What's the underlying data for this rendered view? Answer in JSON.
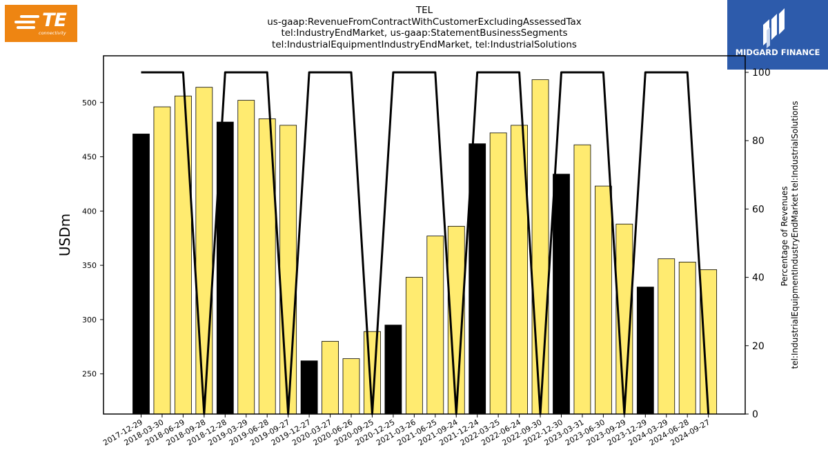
{
  "header": {
    "title_lines": [
      "TEL",
      "us-gaap:RevenueFromContractWithCustomerExcludingAssessedTax",
      "tel:IndustryEndMarket, us-gaap:StatementBusinessSegments",
      "tel:IndustrialEquipmentIndustryEndMarket, tel:IndustrialSolutions"
    ]
  },
  "logos": {
    "left": {
      "text": "TE",
      "subtext": "connectivity",
      "color": "#ee8512"
    },
    "right": {
      "text": "MIDGARD FINANCE",
      "color": "#2d5bab"
    }
  },
  "chart_data": {
    "type": "bar",
    "categories": [
      "2017-12-29",
      "2018-03-30",
      "2018-06-29",
      "2018-09-28",
      "2018-12-28",
      "2019-03-29",
      "2019-06-28",
      "2019-09-27",
      "2019-12-27",
      "2020-03-27",
      "2020-06-26",
      "2020-09-25",
      "2020-12-25",
      "2021-03-26",
      "2021-06-25",
      "2021-09-24",
      "2021-12-24",
      "2022-03-25",
      "2022-06-24",
      "2022-09-30",
      "2022-12-30",
      "2023-03-31",
      "2023-06-30",
      "2023-09-29",
      "2023-12-29",
      "2024-03-29",
      "2024-06-28",
      "2024-09-27"
    ],
    "values": [
      471,
      496,
      506,
      514,
      482,
      502,
      485,
      479,
      262,
      280,
      264,
      289,
      295,
      339,
      377,
      386,
      462,
      472,
      479,
      521,
      434,
      461,
      423,
      388,
      330,
      356,
      353,
      346
    ],
    "bar_colors": [
      "#000000",
      "#ffeb70",
      "#ffeb70",
      "#ffeb70",
      "#000000",
      "#ffeb70",
      "#ffeb70",
      "#ffeb70",
      "#000000",
      "#ffeb70",
      "#ffeb70",
      "#ffeb70",
      "#000000",
      "#ffeb70",
      "#ffeb70",
      "#ffeb70",
      "#000000",
      "#ffeb70",
      "#ffeb70",
      "#ffeb70",
      "#000000",
      "#ffeb70",
      "#ffeb70",
      "#ffeb70",
      "#000000",
      "#ffeb70",
      "#ffeb70",
      "#ffeb70"
    ],
    "line_values": [
      100,
      100,
      100,
      0,
      100,
      100,
      100,
      0,
      100,
      100,
      100,
      0,
      100,
      100,
      100,
      0,
      100,
      100,
      100,
      0,
      100,
      100,
      100,
      0,
      100,
      100,
      100,
      0
    ],
    "ylabel": "USDm",
    "y2label_lines": [
      "Percentage of Revenues",
      "tel:IndustrialEquipmentIndustryEndMarket tel:IndustrialSolutions"
    ],
    "ylim": [
      213,
      543
    ],
    "yticks": [
      250,
      300,
      350,
      400,
      450,
      500
    ],
    "y2lim": [
      0,
      100
    ],
    "y2ticks": [
      0,
      20,
      40,
      60,
      80,
      100
    ],
    "grid": false,
    "legend": "none"
  }
}
